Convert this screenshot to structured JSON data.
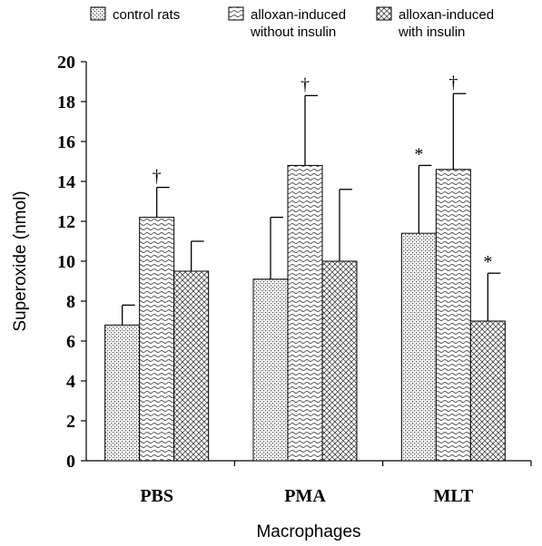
{
  "chart_data": {
    "type": "bar",
    "ylabel": "Superoxide (nmol)",
    "xlabel": "Macrophages",
    "ylim": [
      0,
      20
    ],
    "yticks": [
      0,
      2,
      4,
      6,
      8,
      10,
      12,
      14,
      16,
      18,
      20
    ],
    "grid": false,
    "legend_position": "top",
    "categories": [
      "PBS",
      "PMA",
      "MLT"
    ],
    "series": [
      {
        "name": "control rats",
        "values": [
          6.8,
          9.1,
          11.4
        ],
        "errors": [
          1.0,
          3.1,
          3.4
        ],
        "annotations": [
          "",
          "",
          "*"
        ]
      },
      {
        "name": "alloxan-induced without insulin",
        "values": [
          12.2,
          14.8,
          14.6
        ],
        "errors": [
          1.5,
          3.5,
          3.8
        ],
        "annotations": [
          "†",
          "†",
          "†"
        ]
      },
      {
        "name": "alloxan-induced with insulin",
        "values": [
          9.5,
          10.0,
          7.0
        ],
        "errors": [
          1.5,
          3.6,
          2.4
        ],
        "annotations": [
          "",
          "",
          "*"
        ]
      }
    ]
  },
  "legend": {
    "items": [
      {
        "lines": [
          "control rats"
        ]
      },
      {
        "lines": [
          "alloxan-induced",
          "without insulin"
        ]
      },
      {
        "lines": [
          "alloxan-induced",
          "with insulin"
        ]
      }
    ]
  }
}
